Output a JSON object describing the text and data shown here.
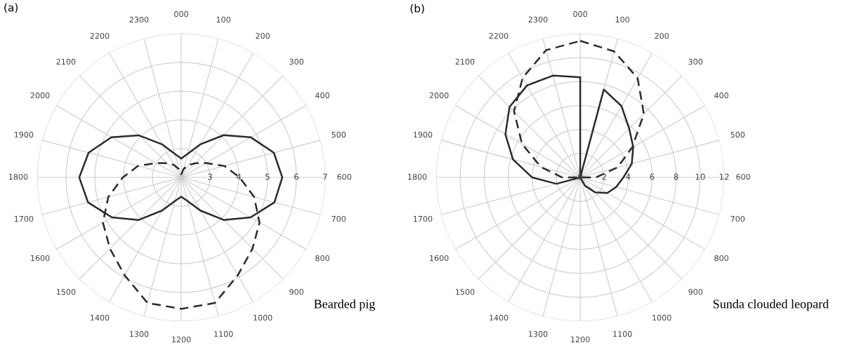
{
  "chart_data": [
    {
      "type": "radar",
      "title": "(a)",
      "categories": [
        "000",
        "100",
        "200",
        "300",
        "400",
        "500",
        "600",
        "700",
        "800",
        "900",
        "1000",
        "1100",
        "1200",
        "1300",
        "1400",
        "1500",
        "1600",
        "1700",
        "1800",
        "1900",
        "2000",
        "2100",
        "2200",
        "2300"
      ],
      "series": [
        {
          "color": "#2b2b2b",
          "line_style": "solid",
          "values": [
            2.66,
            2.85,
            3.33,
            4.08,
            4.79,
            5.33,
            5.51,
            5.35,
            4.78,
            4.09,
            3.33,
            2.85,
            2.67,
            2.85,
            3.33,
            4.09,
            4.78,
            5.35,
            5.54,
            5.33,
            4.8,
            4.07,
            3.33,
            2.85
          ]
        },
        {
          "color": "#2b2b2b",
          "line_style": "dashed",
          "values": [
            2.1,
            2.3,
            2.5,
            2.7,
            3.0,
            3.55,
            4.03,
            4.62,
            5.14,
            5.5,
            5.93,
            6.52,
            6.57,
            6.52,
            5.93,
            5.5,
            5.14,
            4.62,
            4.03,
            3.55,
            3.0,
            2.7,
            2.5,
            2.3
          ]
        }
      ],
      "ylim": [
        2,
        7
      ],
      "yticks": [
        3,
        4,
        5,
        6,
        7
      ],
      "grid": true,
      "annotations": [
        "Bearded pig"
      ]
    },
    {
      "type": "radar",
      "title": "(b)",
      "categories": [
        "000",
        "100",
        "200",
        "300",
        "400",
        "500",
        "600",
        "700",
        "800",
        "900",
        "1000",
        "1100",
        "1200",
        "1300",
        "1400",
        "1500",
        "1600",
        "1700",
        "1800",
        "1900",
        "2000",
        "2100",
        "2200",
        "2300"
      ],
      "series": [
        {
          "color": "#2b2b2b",
          "line_style": "solid",
          "values": [
            8.36,
            0,
            0,
            0,
            0,
            0,
            0,
            0,
            0,
            0,
            0,
            0,
            0,
            0,
            0,
            0,
            0,
            2.05,
            4.0,
            5.8,
            7.2,
            8.33,
            8.87,
            8.8
          ]
        },
        {
          "color": "#2b2b2b",
          "line_style": "solid",
          "values": [
            0,
            7.6,
            6.88,
            5.77,
            5.1,
            4.45,
            3.6,
            3.1,
            2.6,
            1.75,
            0.8,
            0,
            0,
            0,
            0,
            0,
            0,
            0,
            0,
            0,
            0,
            0,
            0,
            0
          ]
        },
        {
          "color": "#2b2b2b",
          "line_style": "dashed",
          "values": [
            11.4,
            10.9,
            9.57,
            7.5,
            5.0,
            3.2,
            1.3,
            0,
            0,
            0,
            0,
            0,
            0,
            0,
            0,
            0,
            0,
            0,
            1.5,
            3.4,
            5.6,
            7.8,
            9.6,
            11.0
          ]
        }
      ],
      "ylim": [
        0,
        12
      ],
      "yticks": [
        0,
        2,
        4,
        6,
        8,
        10,
        12
      ],
      "grid": true,
      "annotations": [
        "Sunda clouded leopard"
      ]
    }
  ]
}
